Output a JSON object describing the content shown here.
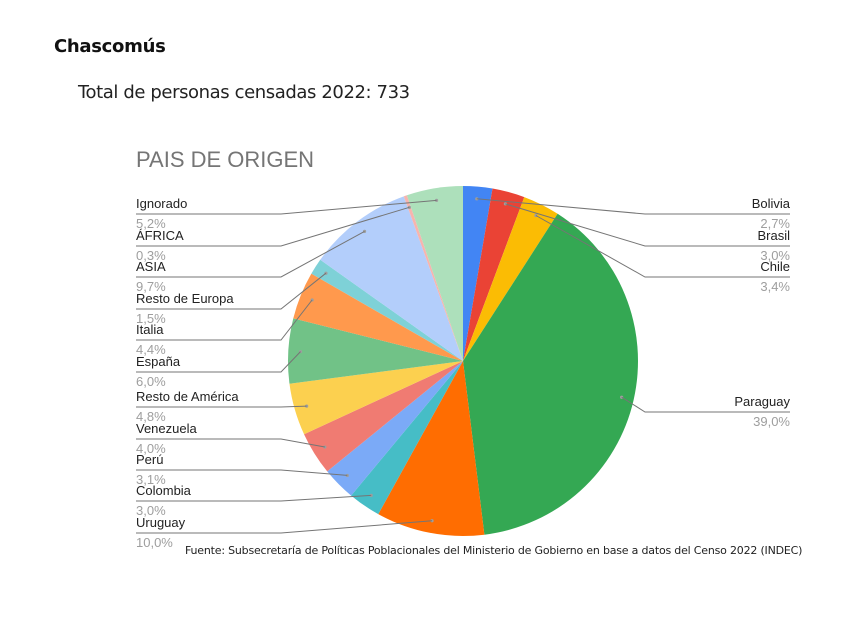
{
  "header": {
    "title": "Chascomús",
    "subtitle": "Total de personas censadas 2022: 733"
  },
  "footer": {
    "source": "Fuente: Subsecretaría de Políticas Poblacionales del Ministerio de Gobierno en base a datos del Censo 2022 (INDEC)"
  },
  "chart_data": {
    "type": "pie",
    "title": "PAIS DE ORIGEN",
    "legend": "none",
    "slices": [
      {
        "label": "Bolivia",
        "value": 2.7,
        "display": "2,7%",
        "color": "#4285f4"
      },
      {
        "label": "Brasil",
        "value": 3.0,
        "display": "3,0%",
        "color": "#ea4335"
      },
      {
        "label": "Chile",
        "value": 3.4,
        "display": "3,4%",
        "color": "#fbbc04"
      },
      {
        "label": "Paraguay",
        "value": 39.0,
        "display": "39,0%",
        "color": "#34a853"
      },
      {
        "label": "Uruguay",
        "value": 10.0,
        "display": "10,0%",
        "color": "#ff6d01"
      },
      {
        "label": "Colombia",
        "value": 3.0,
        "display": "3,0%",
        "color": "#46bdc6"
      },
      {
        "label": "Perú",
        "value": 3.1,
        "display": "3,1%",
        "color": "#7baaf7"
      },
      {
        "label": "Venezuela",
        "value": 4.0,
        "display": "4,0%",
        "color": "#f07b72"
      },
      {
        "label": "Resto de América",
        "value": 4.8,
        "display": "4,8%",
        "color": "#fcd04f"
      },
      {
        "label": "España",
        "value": 6.0,
        "display": "6,0%",
        "color": "#71c287"
      },
      {
        "label": "Italia",
        "value": 4.4,
        "display": "4,4%",
        "color": "#ff994d"
      },
      {
        "label": "Resto de Europa",
        "value": 1.5,
        "display": "1,5%",
        "color": "#7ed1d7"
      },
      {
        "label": "ASIA",
        "value": 9.7,
        "display": "9,7%",
        "color": "#b3cefb"
      },
      {
        "label": "ÁFRICA",
        "value": 0.3,
        "display": "0,3%",
        "color": "#f7b4ae"
      },
      {
        "label": "Ignorado",
        "value": 5.2,
        "display": "5,2%",
        "color": "#ade0bb"
      }
    ]
  }
}
